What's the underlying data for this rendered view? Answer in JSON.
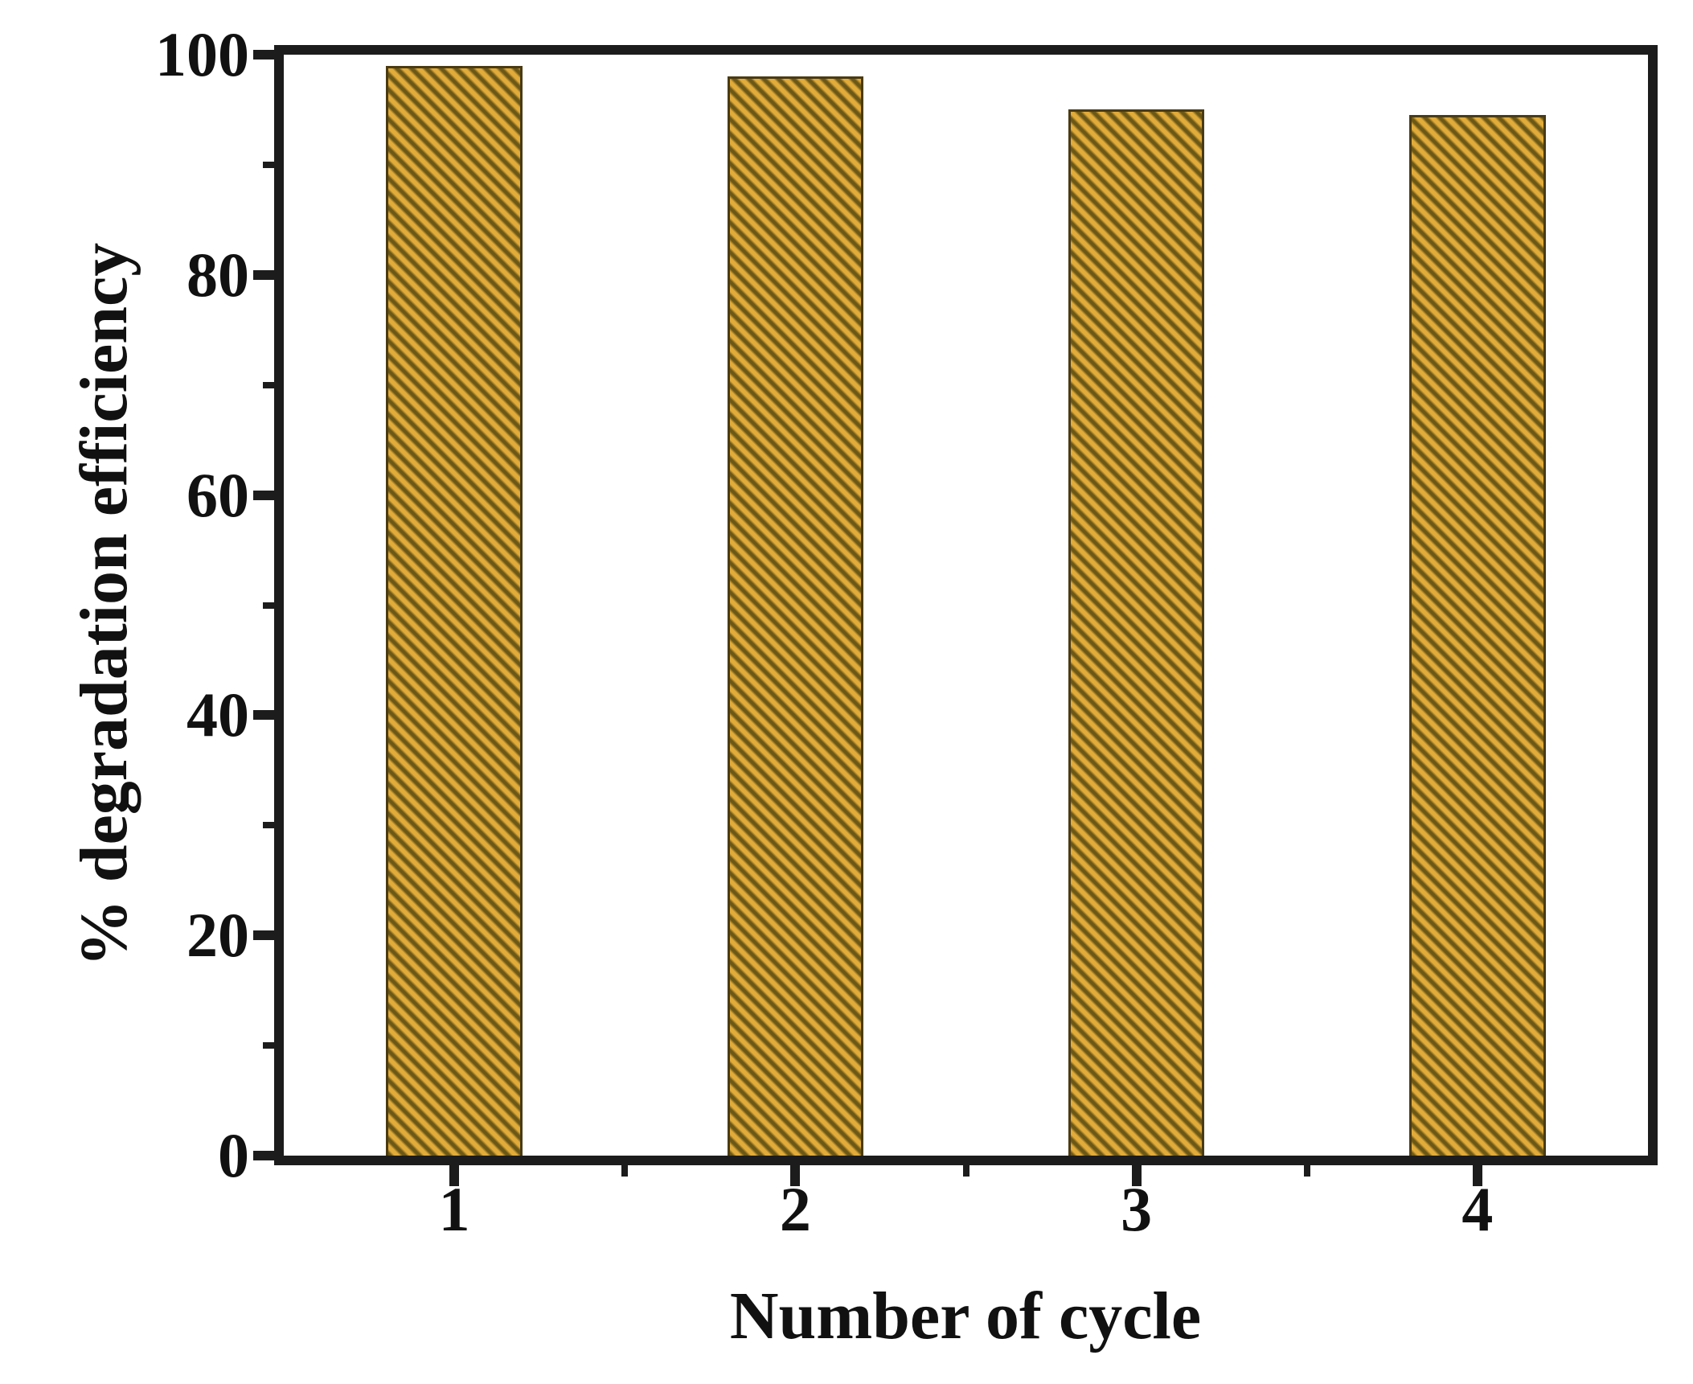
{
  "chart_data": {
    "type": "bar",
    "title": "",
    "xlabel": "Number of cycle",
    "ylabel": "% degradation efficiency",
    "categories": [
      "1",
      "2",
      "3",
      "4"
    ],
    "x": [
      1,
      2,
      3,
      4
    ],
    "values": [
      99,
      98,
      95,
      94.5
    ],
    "bar_width": 0.4,
    "xlim": [
      0.5,
      4.5
    ],
    "ylim": [
      0,
      100
    ],
    "x_major_ticks": [
      1,
      2,
      3,
      4
    ],
    "x_minor_ticks": [
      1.5,
      2.5,
      3.5
    ],
    "y_major_ticks": [
      0,
      20,
      40,
      60,
      80,
      100
    ],
    "y_minor_ticks": [
      10,
      30,
      50,
      70,
      90
    ],
    "grid": false,
    "legend": false,
    "hatch_pattern": "diagonal-down",
    "colors": {
      "bar_fill": "#E2AC3A",
      "bar_hatch": "#6B5716",
      "bar_edge": "#4A3B14",
      "axis": "#1C1C1C",
      "text": "#111111",
      "background": "#FFFFFF"
    }
  }
}
